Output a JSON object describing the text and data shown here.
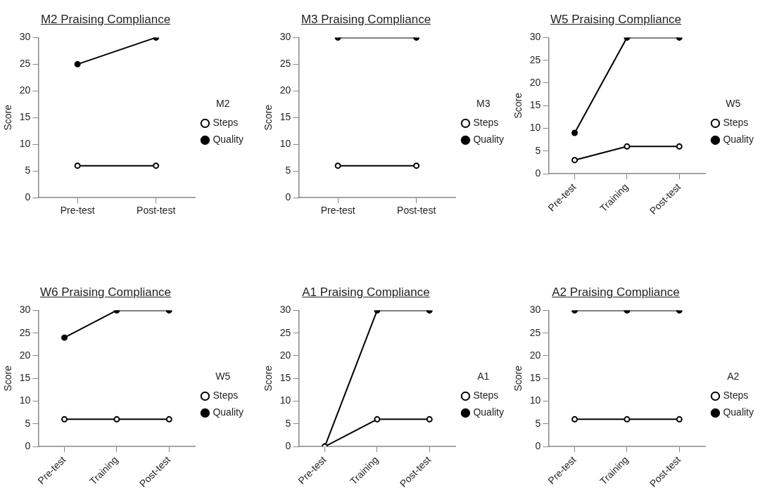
{
  "chart_data": [
    {
      "type": "line",
      "title": "M2 Praising Compliance",
      "ylabel": "Score",
      "legend_title": "M2",
      "legend": "right",
      "grid": false,
      "marker": "circle",
      "categories": [
        "Pre-test",
        "Post-test"
      ],
      "ylim": [
        0,
        30
      ],
      "yticks": [
        0,
        5,
        10,
        15,
        20,
        25,
        30
      ],
      "series": [
        {
          "name": "Steps",
          "color": "#000000",
          "colors": [
            "#ffffff",
            "#ffffff"
          ],
          "values": [
            6,
            6
          ]
        },
        {
          "name": "Quality",
          "color": "#000000",
          "values": [
            25,
            30
          ]
        }
      ]
    },
    {
      "type": "line",
      "title": "M3 Praising Compliance",
      "ylabel": "Score",
      "legend_title": "M3",
      "legend": "right",
      "grid": false,
      "marker": "circle",
      "categories": [
        "Pre-test",
        "Post-test"
      ],
      "ylim": [
        0,
        30
      ],
      "yticks": [
        0,
        5,
        10,
        15,
        20,
        25,
        30
      ],
      "series": [
        {
          "name": "Steps",
          "color": "#000000",
          "colors": [
            "#ffffff",
            "#ffffff"
          ],
          "values": [
            6,
            6
          ]
        },
        {
          "name": "Quality",
          "color": "#000000",
          "values": [
            30,
            30
          ]
        }
      ]
    },
    {
      "type": "line",
      "title": "W5 Praising Compliance",
      "ylabel": "Score",
      "legend_title": "W5",
      "legend": "right",
      "grid": false,
      "marker": "circle",
      "categories": [
        "Pre-test",
        "Training",
        "Post-test"
      ],
      "ylim": [
        0,
        30
      ],
      "yticks": [
        0,
        5,
        10,
        15,
        20,
        25,
        30
      ],
      "series": [
        {
          "name": "Steps",
          "color": "#000000",
          "colors": [
            "#ffffff",
            "#ffffff",
            "#ffffff"
          ],
          "values": [
            3,
            6,
            6
          ]
        },
        {
          "name": "Quality",
          "color": "#000000",
          "values": [
            9,
            30,
            30
          ]
        }
      ]
    },
    {
      "type": "line",
      "title": "W6 Praising Compliance",
      "ylabel": "Score",
      "legend_title": "W5",
      "legend": "right",
      "grid": false,
      "marker": "circle",
      "categories": [
        "Pre-test",
        "Training",
        "Post-test"
      ],
      "ylim": [
        0,
        30
      ],
      "yticks": [
        0,
        5,
        10,
        15,
        20,
        25,
        30
      ],
      "series": [
        {
          "name": "Steps",
          "color": "#000000",
          "colors": [
            "#ffffff",
            "#ffffff",
            "#ffffff"
          ],
          "values": [
            6,
            6,
            6
          ]
        },
        {
          "name": "Quality",
          "color": "#000000",
          "values": [
            24,
            30,
            30
          ]
        }
      ]
    },
    {
      "type": "line",
      "title": "A1 Praising Compliance",
      "ylabel": "Score",
      "legend_title": "A1",
      "legend": "right",
      "grid": false,
      "marker": "circle",
      "categories": [
        "Pre-test",
        "Training",
        "Post-test"
      ],
      "ylim": [
        0,
        30
      ],
      "yticks": [
        0,
        5,
        10,
        15,
        20,
        25,
        30
      ],
      "series": [
        {
          "name": "Steps",
          "color": "#000000",
          "colors": [
            "#ffffff",
            "#ffffff",
            "#ffffff"
          ],
          "values": [
            0,
            6,
            6
          ]
        },
        {
          "name": "Quality",
          "color": "#000000",
          "values": [
            0,
            30,
            30
          ]
        }
      ]
    },
    {
      "type": "line",
      "title": "A2 Praising Compliance",
      "ylabel": "Score",
      "legend_title": "A2",
      "legend": "right",
      "grid": false,
      "marker": "circle",
      "categories": [
        "Pre-test",
        "Training",
        "Post-test"
      ],
      "ylim": [
        0,
        30
      ],
      "yticks": [
        0,
        5,
        10,
        15,
        20,
        25,
        30
      ],
      "series": [
        {
          "name": "Steps",
          "color": "#000000",
          "colors": [
            "#ffffff",
            "#ffffff",
            "#ffffff"
          ],
          "values": [
            6,
            6,
            6
          ]
        },
        {
          "name": "Quality",
          "color": "#000000",
          "values": [
            30,
            30,
            30
          ]
        }
      ]
    }
  ]
}
